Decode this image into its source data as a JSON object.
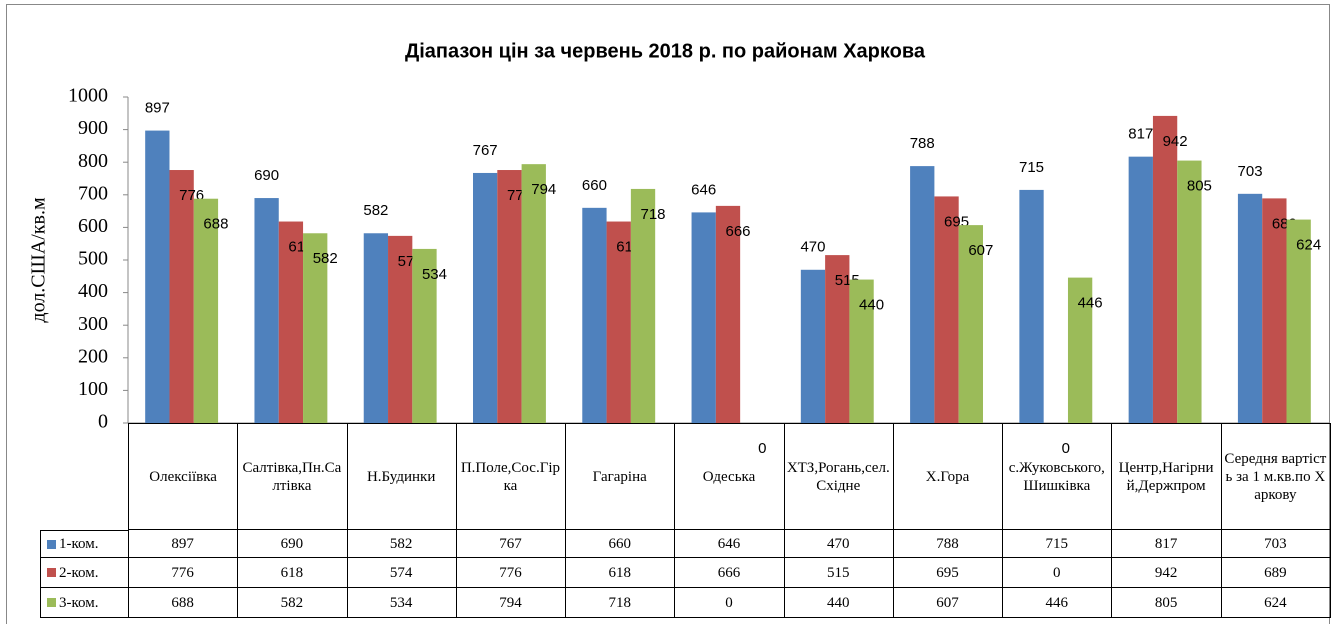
{
  "chart_data": {
    "type": "bar",
    "title": "Діапазон цін за червень 2018 р. по районам Харкова",
    "y_label": "дол.США/кв.м",
    "categories": [
      "Олексіївка",
      "Салтівка,Пн.Салтівка",
      "Н.Будинки",
      "П.Поле,Сос.Гірка",
      "Гагаріна",
      "Одеська",
      "ХТЗ,Рогань,сел.Східне",
      "Х.Гора",
      "с.Жуковського,Шишківка",
      "Центр,Нагірний,Держпром",
      "Середня вартість за 1 м.кв.по Харкову"
    ],
    "series": [
      {
        "name": "1-ком.",
        "color": "#4f81bd",
        "values": [
          897,
          690,
          582,
          767,
          660,
          646,
          470,
          788,
          715,
          817,
          703
        ]
      },
      {
        "name": "2-ком.",
        "color": "#c0504d",
        "values": [
          776,
          618,
          574,
          776,
          618,
          666,
          515,
          695,
          0,
          942,
          689
        ]
      },
      {
        "name": "3-ком.",
        "color": "#9bbb59",
        "values": [
          688,
          582,
          534,
          794,
          718,
          0,
          440,
          607,
          446,
          805,
          624
        ]
      }
    ],
    "ylim": [
      0,
      1000
    ],
    "yticks": [
      0,
      100,
      200,
      300,
      400,
      500,
      600,
      700,
      800,
      900,
      1000
    ],
    "data_table": true
  }
}
